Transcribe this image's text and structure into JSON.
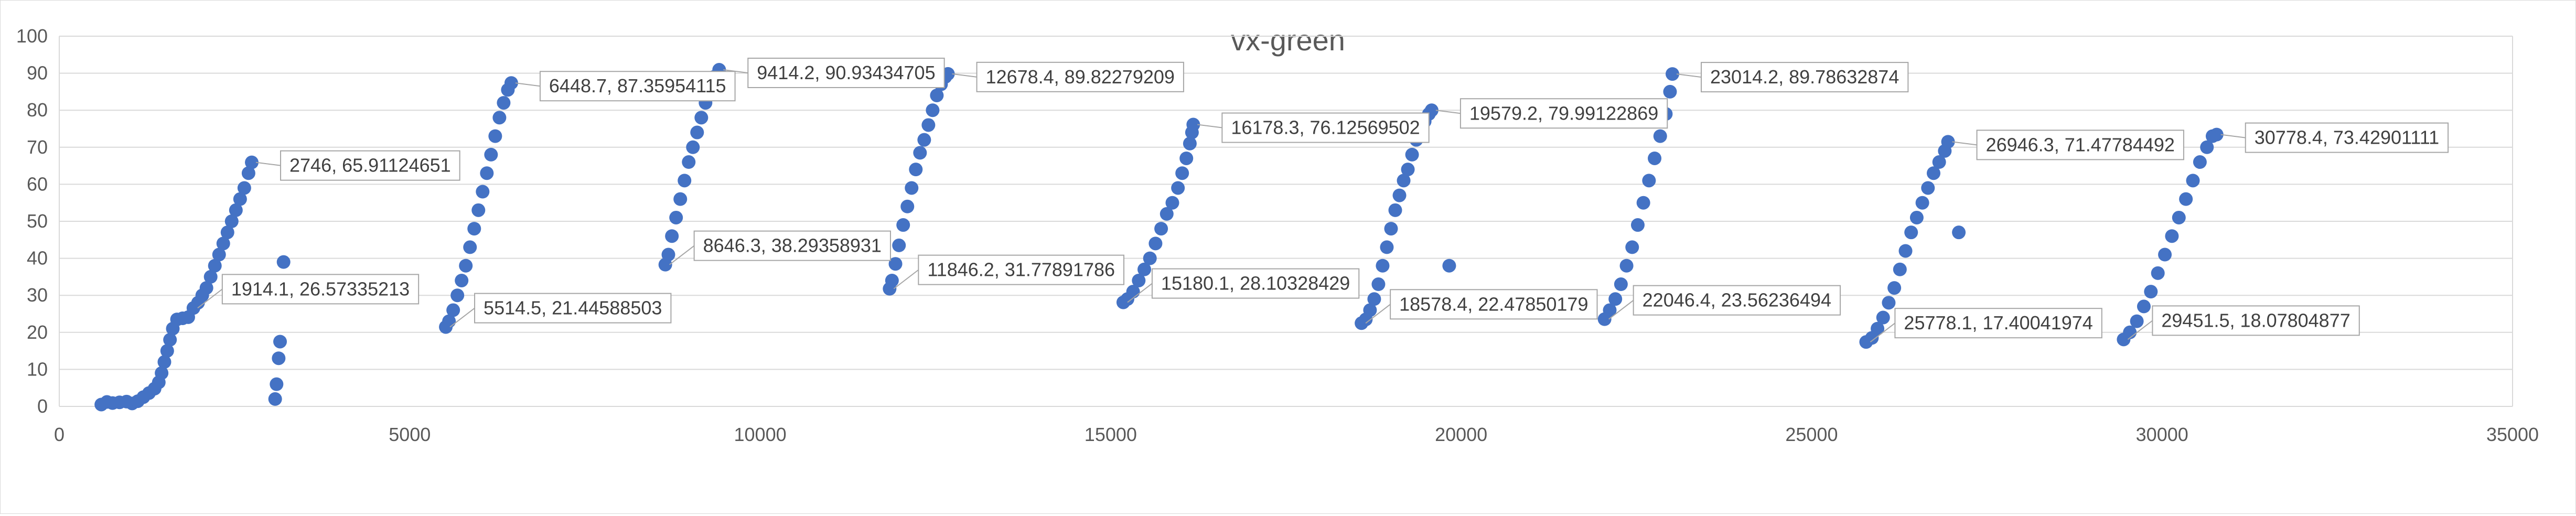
{
  "chart_data": {
    "type": "scatter",
    "title": "vx-green",
    "xlabel": "",
    "ylabel": "",
    "xlim": [
      0,
      35000
    ],
    "ylim": [
      0,
      100
    ],
    "x_ticks": [
      0,
      5000,
      10000,
      15000,
      20000,
      25000,
      30000,
      35000
    ],
    "y_ticks": [
      0,
      10,
      20,
      30,
      40,
      50,
      60,
      70,
      80,
      90,
      100
    ],
    "grid": "horizontal",
    "legend": "none",
    "color": "#4472C4",
    "series": [
      {
        "points": [
          [
            600,
            0.5
          ],
          [
            680,
            1.2
          ],
          [
            760,
            0.9
          ],
          [
            860,
            1.1
          ],
          [
            960,
            1.3
          ],
          [
            1040,
            0.8
          ],
          [
            1120,
            1.4
          ],
          [
            1200,
            2.5
          ],
          [
            1280,
            3.6
          ],
          [
            1360,
            4.8
          ],
          [
            1420,
            6.5
          ],
          [
            1460,
            9
          ],
          [
            1500,
            12
          ],
          [
            1540,
            15
          ],
          [
            1580,
            18
          ],
          [
            1620,
            21
          ],
          [
            1680,
            23.5
          ],
          [
            1760,
            23.8
          ],
          [
            1840,
            24.1
          ],
          [
            1914.1,
            26.57
          ],
          [
            1980,
            28
          ],
          [
            2040,
            30
          ],
          [
            2100,
            32
          ],
          [
            2160,
            35
          ],
          [
            2220,
            38
          ],
          [
            2280,
            41
          ],
          [
            2340,
            44
          ],
          [
            2400,
            47
          ],
          [
            2460,
            50
          ],
          [
            2520,
            53
          ],
          [
            2580,
            56
          ],
          [
            2640,
            59
          ],
          [
            2700,
            63
          ],
          [
            2746,
            65.91
          ],
          [
            3080,
            2
          ],
          [
            3100,
            6
          ],
          [
            3130,
            13
          ],
          [
            3150,
            17.5
          ],
          [
            3200,
            39
          ]
        ],
        "labels": [
          {
            "x": 1914.1,
            "y": 26.57335213,
            "text": "1914.1, 26.57335213"
          },
          {
            "x": 2746,
            "y": 65.91124651,
            "text": "2746, 65.91124651"
          }
        ]
      },
      {
        "points": [
          [
            5514.5,
            21.45
          ],
          [
            5560,
            23
          ],
          [
            5620,
            26
          ],
          [
            5680,
            30
          ],
          [
            5740,
            34
          ],
          [
            5800,
            38
          ],
          [
            5860,
            43
          ],
          [
            5920,
            48
          ],
          [
            5980,
            53
          ],
          [
            6040,
            58
          ],
          [
            6100,
            63
          ],
          [
            6160,
            68
          ],
          [
            6220,
            73
          ],
          [
            6280,
            78
          ],
          [
            6340,
            82
          ],
          [
            6400,
            85.5
          ],
          [
            6448.7,
            87.36
          ]
        ],
        "labels": [
          {
            "x": 5514.5,
            "y": 21.44588503,
            "text": "5514.5, 21.44588503"
          },
          {
            "x": 6448.7,
            "y": 87.35954115,
            "text": "6448.7, 87.35954115"
          }
        ]
      },
      {
        "points": [
          [
            8646.3,
            38.29
          ],
          [
            8690,
            41
          ],
          [
            8740,
            46
          ],
          [
            8800,
            51
          ],
          [
            8860,
            56
          ],
          [
            8920,
            61
          ],
          [
            8980,
            66
          ],
          [
            9040,
            70
          ],
          [
            9100,
            74
          ],
          [
            9160,
            78
          ],
          [
            9220,
            82
          ],
          [
            9280,
            86
          ],
          [
            9340,
            89
          ],
          [
            9414.2,
            90.93
          ]
        ],
        "labels": [
          {
            "x": 8646.3,
            "y": 38.29358931,
            "text": "8646.3, 38.29358931"
          },
          {
            "x": 9414.2,
            "y": 90.93434705,
            "text": "9414.2, 90.93434705"
          }
        ]
      },
      {
        "points": [
          [
            11846.2,
            31.78
          ],
          [
            11880,
            34
          ],
          [
            11930,
            38.5
          ],
          [
            11980,
            43.5
          ],
          [
            12040,
            49
          ],
          [
            12100,
            54
          ],
          [
            12160,
            59
          ],
          [
            12220,
            64
          ],
          [
            12280,
            68.5
          ],
          [
            12340,
            72
          ],
          [
            12400,
            76
          ],
          [
            12460,
            80
          ],
          [
            12520,
            84
          ],
          [
            12580,
            87
          ],
          [
            12640,
            89
          ],
          [
            12678.4,
            89.82
          ]
        ],
        "labels": [
          {
            "x": 11846.2,
            "y": 31.77891786,
            "text": "11846.2, 31.77891786"
          },
          {
            "x": 12678.4,
            "y": 89.82279209,
            "text": "12678.4, 89.82279209"
          }
        ]
      },
      {
        "points": [
          [
            15180.1,
            28.1
          ],
          [
            15240,
            29
          ],
          [
            15320,
            31
          ],
          [
            15400,
            34
          ],
          [
            15480,
            37
          ],
          [
            15560,
            40
          ],
          [
            15640,
            44
          ],
          [
            15720,
            48
          ],
          [
            15800,
            52
          ],
          [
            15880,
            55
          ],
          [
            15960,
            59
          ],
          [
            16020,
            63
          ],
          [
            16080,
            67
          ],
          [
            16130,
            71
          ],
          [
            16160,
            74
          ],
          [
            16178.3,
            76.13
          ]
        ],
        "labels": [
          {
            "x": 15180.1,
            "y": 28.10328429,
            "text": "15180.1, 28.10328429"
          },
          {
            "x": 16178.3,
            "y": 76.12569502,
            "text": "16178.3, 76.12569502"
          }
        ]
      },
      {
        "points": [
          [
            18578.4,
            22.48
          ],
          [
            18640,
            23.5
          ],
          [
            18700,
            26
          ],
          [
            18760,
            29
          ],
          [
            18820,
            33
          ],
          [
            18880,
            38
          ],
          [
            18940,
            43
          ],
          [
            19000,
            48
          ],
          [
            19060,
            53
          ],
          [
            19120,
            57
          ],
          [
            19180,
            61
          ],
          [
            19240,
            64
          ],
          [
            19300,
            68
          ],
          [
            19360,
            72
          ],
          [
            19420,
            75
          ],
          [
            19480,
            77
          ],
          [
            19540,
            79
          ],
          [
            19579.2,
            79.99
          ],
          [
            19830,
            38
          ]
        ],
        "labels": [
          {
            "x": 18578.4,
            "y": 22.47850179,
            "text": "18578.4, 22.47850179"
          },
          {
            "x": 19579.2,
            "y": 79.99122869,
            "text": "19579.2, 79.99122869"
          }
        ]
      },
      {
        "points": [
          [
            22046.4,
            23.56
          ],
          [
            22120,
            26
          ],
          [
            22200,
            29
          ],
          [
            22280,
            33
          ],
          [
            22360,
            38
          ],
          [
            22440,
            43
          ],
          [
            22520,
            49
          ],
          [
            22600,
            55
          ],
          [
            22680,
            61
          ],
          [
            22760,
            67
          ],
          [
            22840,
            73
          ],
          [
            22920,
            79
          ],
          [
            22980,
            85
          ],
          [
            23014.2,
            89.79
          ]
        ],
        "labels": [
          {
            "x": 22046.4,
            "y": 23.56236494,
            "text": "22046.4, 23.56236494"
          },
          {
            "x": 23014.2,
            "y": 89.78632874,
            "text": "23014.2, 89.78632874"
          }
        ]
      },
      {
        "points": [
          [
            25778.1,
            17.4
          ],
          [
            25860,
            18.5
          ],
          [
            25940,
            21
          ],
          [
            26020,
            24
          ],
          [
            26100,
            28
          ],
          [
            26180,
            32
          ],
          [
            26260,
            37
          ],
          [
            26340,
            42
          ],
          [
            26420,
            47
          ],
          [
            26500,
            51
          ],
          [
            26580,
            55
          ],
          [
            26660,
            59
          ],
          [
            26740,
            63
          ],
          [
            26820,
            66
          ],
          [
            26900,
            69
          ],
          [
            26946.3,
            71.48
          ],
          [
            27100,
            47
          ]
        ],
        "labels": [
          {
            "x": 25778.1,
            "y": 17.40041974,
            "text": "25778.1, 17.40041974"
          },
          {
            "x": 26946.3,
            "y": 71.47784492,
            "text": "26946.3, 71.47784492"
          }
        ]
      },
      {
        "points": [
          [
            29451.5,
            18.08
          ],
          [
            29540,
            20
          ],
          [
            29640,
            23
          ],
          [
            29740,
            27
          ],
          [
            29840,
            31
          ],
          [
            29940,
            36
          ],
          [
            30040,
            41
          ],
          [
            30140,
            46
          ],
          [
            30240,
            51
          ],
          [
            30340,
            56
          ],
          [
            30440,
            61
          ],
          [
            30540,
            66
          ],
          [
            30640,
            70
          ],
          [
            30720,
            73
          ],
          [
            30778.4,
            73.43
          ]
        ],
        "labels": [
          {
            "x": 29451.5,
            "y": 18.07804877,
            "text": "29451.5, 18.07804877"
          },
          {
            "x": 30778.4,
            "y": 73.42901111,
            "text": "30778.4, 73.42901111"
          }
        ]
      }
    ]
  }
}
